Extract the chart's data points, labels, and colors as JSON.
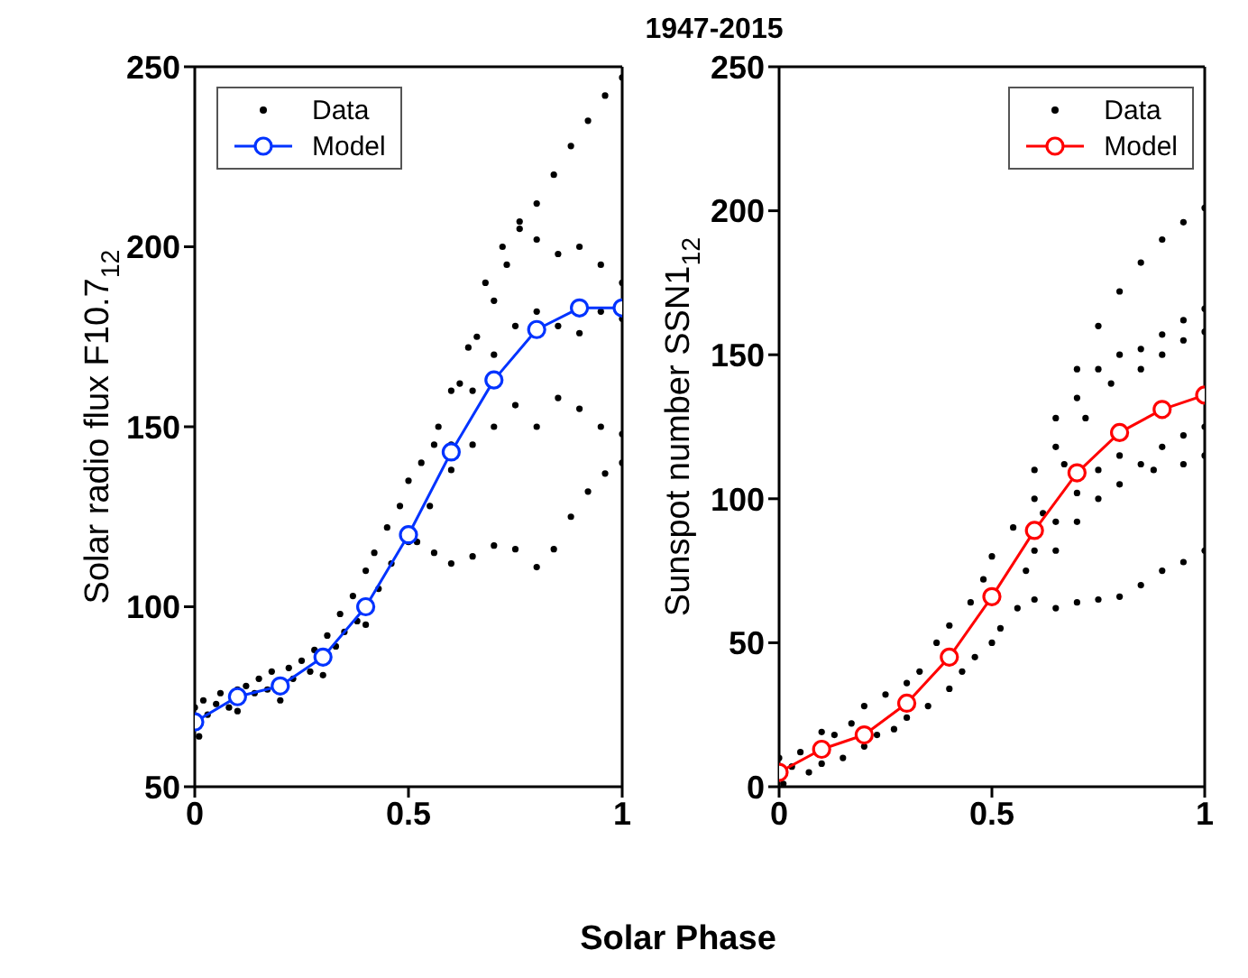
{
  "chart_data": [
    {
      "type": "scatter",
      "xlabel": "Solar Phase",
      "ylabel": "Solar radio flux F10.7$_{12}$",
      "xlim": [
        0,
        1
      ],
      "xticks": [
        0,
        0.5,
        1
      ],
      "ylim": [
        50,
        250
      ],
      "yticks": [
        50,
        100,
        150,
        200,
        250
      ],
      "grid": false,
      "legend": "top left",
      "series": [
        {
          "name": "Data",
          "type": "scatter",
          "color": "#000000",
          "marker": "circle",
          "x": [
            0.01,
            0,
            0.02,
            0.03,
            0.05,
            0.06,
            0.08,
            0.1,
            0.1,
            0.12,
            0.14,
            0.15,
            0.17,
            0.18,
            0.2,
            0.22,
            0.23,
            0.25,
            0.27,
            0.28,
            0.3,
            0.31,
            0.33,
            0.34,
            0.35,
            0.37,
            0.38,
            0.4,
            0.4,
            0.42,
            0.43,
            0.45,
            0.46,
            0.48,
            0.5,
            0.5,
            0.53,
            0.57,
            0.62,
            0.66,
            0.7,
            0.73,
            0.76,
            0.8,
            0.84,
            0.88,
            0.92,
            0.96,
            1,
            0.56,
            0.6,
            0.64,
            0.68,
            0.72,
            0.76,
            0.8,
            0.85,
            0.9,
            0.95,
            1,
            0.6,
            0.65,
            0.7,
            0.75,
            0.8,
            0.85,
            0.9,
            0.95,
            1,
            0.55,
            0.6,
            0.65,
            0.7,
            0.75,
            0.8,
            0.85,
            0.9,
            0.95,
            1,
            0.52,
            0.56,
            0.6,
            0.65,
            0.7,
            0.75,
            0.8,
            0.84,
            0.88,
            0.92,
            0.96,
            1
          ],
          "values": [
            64,
            72,
            74,
            70,
            73,
            76,
            72,
            77,
            71,
            78,
            76,
            80,
            77,
            82,
            74,
            83,
            80,
            85,
            82,
            88,
            81,
            92,
            89,
            98,
            93,
            103,
            96,
            110,
            95,
            115,
            105,
            122,
            112,
            128,
            118,
            135,
            140,
            150,
            162,
            175,
            185,
            195,
            205,
            212,
            220,
            228,
            235,
            242,
            247,
            145,
            160,
            172,
            190,
            200,
            207,
            202,
            198,
            200,
            195,
            190,
            145,
            160,
            170,
            178,
            182,
            178,
            176,
            182,
            180,
            128,
            138,
            145,
            150,
            156,
            150,
            158,
            155,
            150,
            148,
            118,
            115,
            112,
            114,
            117,
            116,
            111,
            116,
            125,
            132,
            137,
            140
          ]
        },
        {
          "name": "Model",
          "type": "line",
          "color": "#0033ff",
          "marker": "circle",
          "x": [
            0,
            0.1,
            0.2,
            0.3,
            0.4,
            0.5,
            0.6,
            0.7,
            0.8,
            0.9,
            1
          ],
          "values": [
            68,
            75,
            78,
            86,
            100,
            120,
            143,
            163,
            177,
            183,
            183
          ]
        }
      ]
    },
    {
      "type": "scatter",
      "title": "1947-2015",
      "ylabel": "Sunspot number SSN1$_{12}$",
      "xlim": [
        0,
        1
      ],
      "xticks": [
        0,
        0.5,
        1
      ],
      "ylim": [
        0,
        250
      ],
      "yticks": [
        0,
        50,
        100,
        150,
        200,
        250
      ],
      "grid": false,
      "legend": "top right",
      "series": [
        {
          "name": "Data",
          "type": "scatter",
          "color": "#000000",
          "marker": "circle",
          "x": [
            0.01,
            0,
            0.03,
            0.05,
            0.07,
            0.1,
            0.1,
            0.13,
            0.15,
            0.17,
            0.2,
            0.2,
            0.23,
            0.25,
            0.27,
            0.3,
            0.3,
            0.33,
            0.35,
            0.37,
            0.4,
            0.4,
            0.43,
            0.45,
            0.46,
            0.48,
            0.5,
            0.5,
            0.55,
            0.6,
            0.65,
            0.7,
            0.75,
            0.8,
            0.85,
            0.9,
            0.95,
            1,
            0.6,
            0.65,
            0.7,
            0.75,
            0.8,
            0.85,
            0.9,
            0.95,
            1,
            0.62,
            0.67,
            0.72,
            0.78,
            0.85,
            0.9,
            0.95,
            1,
            0.6,
            0.65,
            0.7,
            0.75,
            0.8,
            0.85,
            0.9,
            0.95,
            1,
            0.58,
            0.65,
            0.7,
            0.75,
            0.8,
            0.88,
            0.95,
            1,
            0.52,
            0.56,
            0.6,
            0.65,
            0.7,
            0.75,
            0.8,
            0.85,
            0.9,
            0.95,
            1
          ],
          "values": [
            1,
            10,
            7,
            12,
            5,
            19,
            8,
            18,
            10,
            22,
            14,
            28,
            18,
            32,
            20,
            36,
            24,
            40,
            28,
            50,
            34,
            56,
            40,
            64,
            45,
            72,
            50,
            80,
            90,
            110,
            128,
            145,
            160,
            172,
            182,
            190,
            196,
            201,
            100,
            118,
            135,
            145,
            150,
            152,
            157,
            162,
            166,
            95,
            112,
            128,
            140,
            145,
            150,
            155,
            158,
            82,
            92,
            102,
            110,
            115,
            112,
            118,
            122,
            125,
            75,
            82,
            92,
            100,
            105,
            110,
            112,
            115,
            55,
            62,
            65,
            62,
            64,
            65,
            66,
            70,
            75,
            78,
            82
          ]
        },
        {
          "name": "Model",
          "type": "line",
          "color": "#ff0000",
          "marker": "circle",
          "x": [
            0,
            0.1,
            0.2,
            0.3,
            0.4,
            0.5,
            0.6,
            0.7,
            0.8,
            0.9,
            1
          ],
          "values": [
            5,
            13,
            18,
            29,
            45,
            66,
            89,
            109,
            123,
            131,
            136
          ]
        }
      ]
    }
  ]
}
